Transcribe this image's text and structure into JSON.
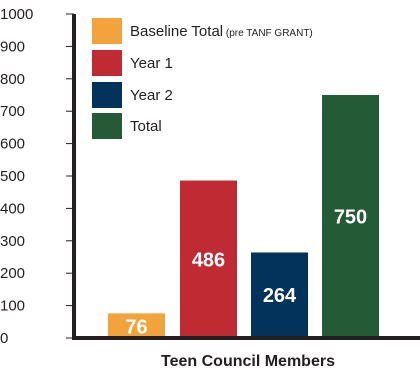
{
  "chart_data": {
    "type": "bar",
    "categories": [
      "Baseline Total (pre TANF GRANT)",
      "Year 1",
      "Year 2",
      "Total"
    ],
    "values": [
      76,
      486,
      264,
      750
    ],
    "colors": [
      "#f3a33b",
      "#bf2a33",
      "#03325a",
      "#245a36"
    ],
    "value_labels": [
      "76",
      "486",
      "264",
      "750"
    ],
    "legend": [
      {
        "label": "Baseline Total",
        "note": "(pre TANF GRANT)",
        "color": "#f3a33b"
      },
      {
        "label": "Year 1",
        "note": "",
        "color": "#bf2a33"
      },
      {
        "label": "Year 2",
        "note": "",
        "color": "#03325a"
      },
      {
        "label": "Total",
        "note": "",
        "color": "#245a36"
      }
    ],
    "legend_position": "top-left",
    "xlabel": "Teen Council Members",
    "ylabel": "",
    "ylim": [
      0,
      1000
    ],
    "yticks": [
      0,
      100,
      200,
      300,
      400,
      500,
      600,
      700,
      800,
      900,
      1000
    ],
    "grid": false
  }
}
